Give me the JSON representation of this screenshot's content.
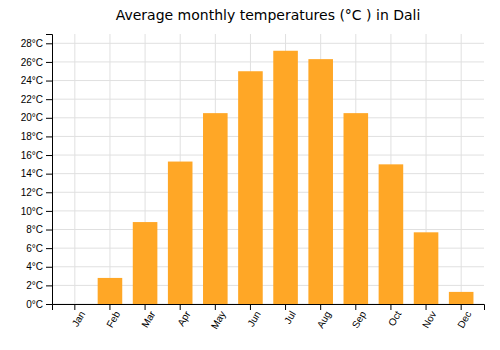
{
  "chart_data": {
    "type": "bar",
    "title": "Average monthly temperatures (°C ) in Dali",
    "categories": [
      "Jan",
      "Feb",
      "Mar",
      "Apr",
      "May",
      "Jun",
      "Jul",
      "Aug",
      "Sep",
      "Oct",
      "Nov",
      "Dec"
    ],
    "values": [
      0,
      2.8,
      8.8,
      15.3,
      20.5,
      25.0,
      27.2,
      26.3,
      20.5,
      15.0,
      7.7,
      1.3
    ],
    "color": "#FFA726",
    "ylim": [
      0,
      29
    ],
    "yticks": [
      {
        "value": 0,
        "label": "0°C"
      },
      {
        "value": 2,
        "label": "2°C"
      },
      {
        "value": 4,
        "label": "4°C"
      },
      {
        "value": 6,
        "label": "6°C"
      },
      {
        "value": 8,
        "label": "8°C"
      },
      {
        "value": 10,
        "label": "10°C"
      },
      {
        "value": 12,
        "label": "12°C"
      },
      {
        "value": 14,
        "label": "14°C"
      },
      {
        "value": 16,
        "label": "16°C"
      },
      {
        "value": 18,
        "label": "18°C"
      },
      {
        "value": 20,
        "label": "20°C"
      },
      {
        "value": 22,
        "label": "22°C"
      },
      {
        "value": 24,
        "label": "24°C"
      },
      {
        "value": 26,
        "label": "26°C"
      },
      {
        "value": 28,
        "label": "28°C"
      }
    ],
    "grid": true
  }
}
